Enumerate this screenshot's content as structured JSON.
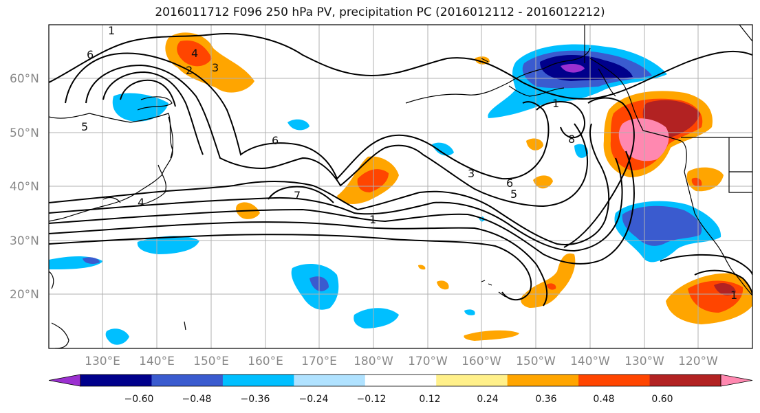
{
  "title": "2016011712 F096 250 hPa PV, precipitation PC (2016012112 - 2016012212)",
  "lat_labels": [
    "60°N",
    "50°N",
    "40°N",
    "30°N",
    "20°N"
  ],
  "lon_labels": [
    "130°E",
    "140°E",
    "150°E",
    "160°E",
    "170°E",
    "180°W",
    "170°W",
    "160°W",
    "150°W",
    "140°W",
    "130°W",
    "120°W"
  ],
  "colorbar": {
    "colors": [
      "#9b30d0",
      "#00008b",
      "#3a5bcf",
      "#00bfff",
      "#b0e2ff",
      "#ffffff",
      "#fff08a",
      "#ffa500",
      "#ff4500",
      "#b22222",
      "#ff88b0"
    ],
    "tick_labels": [
      "−0.60",
      "−0.48",
      "−0.36",
      "−0.24",
      "−0.12",
      "0.12",
      "0.24",
      "0.36",
      "0.48",
      "0.60"
    ]
  },
  "contour_labels": [
    "1",
    "6",
    "5",
    "4",
    "3",
    "2",
    "6",
    "7",
    "1",
    "3",
    "6",
    "5",
    "1",
    "8",
    "1",
    "4"
  ]
}
